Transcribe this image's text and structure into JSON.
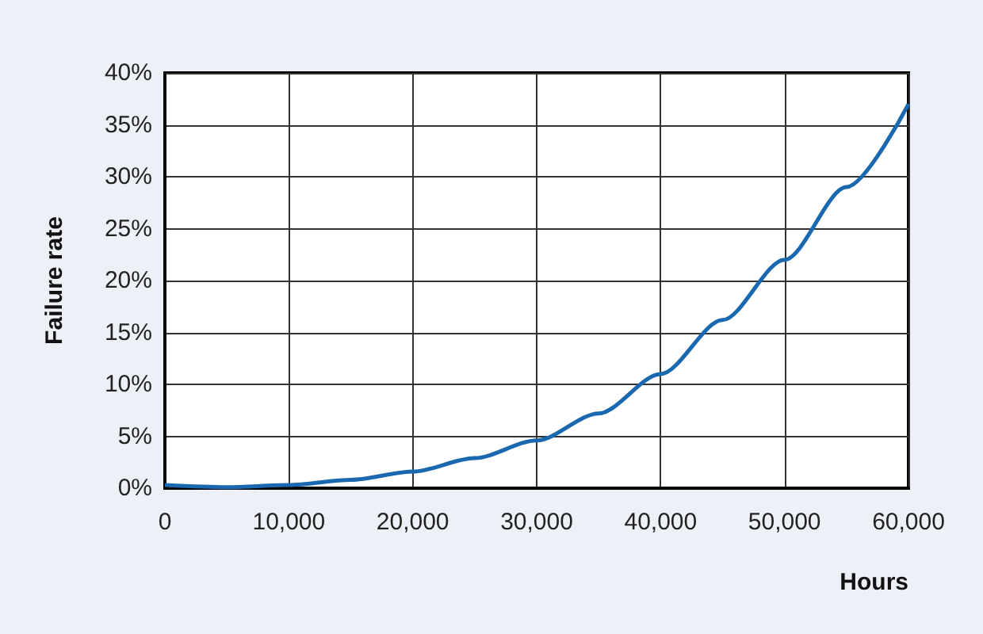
{
  "chart_data": {
    "type": "line",
    "xlabel": "Hours",
    "ylabel": "Failure rate",
    "x": [
      0,
      5000,
      10000,
      15000,
      20000,
      25000,
      30000,
      35000,
      40000,
      45000,
      50000,
      55000,
      60000
    ],
    "series": [
      {
        "color": "#1a68b0",
        "values": [
          0.3,
          0.1,
          0.3,
          0.8,
          1.6,
          2.9,
          4.6,
          7.2,
          11,
          16.2,
          22,
          29,
          37
        ]
      }
    ],
    "xlim": [
      0,
      60000
    ],
    "ylim": [
      0,
      40
    ],
    "xticks": [
      {
        "value": 0,
        "label": "0"
      },
      {
        "value": 10000,
        "label": "10,000"
      },
      {
        "value": 20000,
        "label": "20,000"
      },
      {
        "value": 30000,
        "label": "30,000"
      },
      {
        "value": 40000,
        "label": "40,000"
      },
      {
        "value": 50000,
        "label": "50,000"
      },
      {
        "value": 60000,
        "label": "60,000"
      }
    ],
    "yticks": [
      {
        "value": 0,
        "label": "0%"
      },
      {
        "value": 5,
        "label": "5%"
      },
      {
        "value": 10,
        "label": "10%"
      },
      {
        "value": 15,
        "label": "15%"
      },
      {
        "value": 20,
        "label": "20%"
      },
      {
        "value": 25,
        "label": "25%"
      },
      {
        "value": 30,
        "label": "30%"
      },
      {
        "value": 35,
        "label": "35%"
      },
      {
        "value": 40,
        "label": "40%"
      }
    ],
    "grid": true,
    "marker": "none",
    "line_style": "solid"
  }
}
